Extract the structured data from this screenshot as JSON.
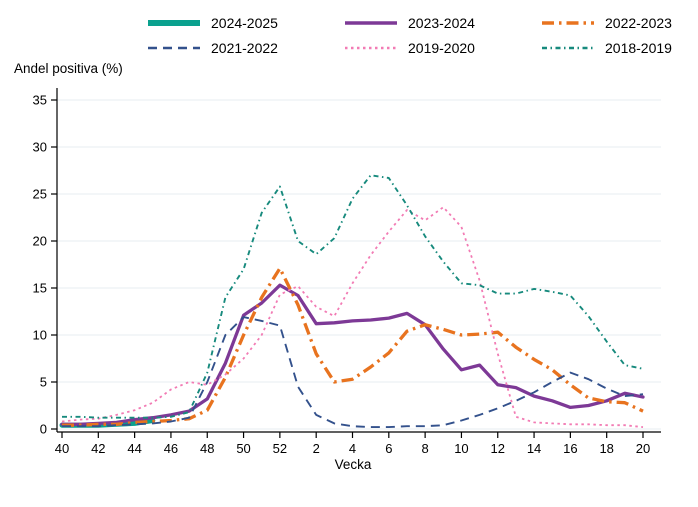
{
  "figure": {
    "y_axis_title": "Andel positiva (%)",
    "x_axis_title": "Vecka"
  },
  "chart_data": {
    "type": "line",
    "title": "",
    "ylabel": "Andel positiva (%)",
    "xlabel": "Vecka",
    "ylim": [
      0,
      35
    ],
    "yticks": [
      0,
      5,
      10,
      15,
      20,
      25,
      30,
      35
    ],
    "grid": true,
    "legend_position": "top",
    "grid_color": "#e7eef1",
    "axis_color": "#000000",
    "categories": [
      "40",
      "41",
      "42",
      "43",
      "44",
      "45",
      "46",
      "47",
      "48",
      "49",
      "50",
      "51",
      "52",
      "1",
      "2",
      "3",
      "4",
      "5",
      "6",
      "7",
      "8",
      "9",
      "10",
      "11",
      "12",
      "13",
      "14",
      "15",
      "16",
      "17",
      "18",
      "19",
      "20"
    ],
    "xtick_labels": [
      "40",
      "42",
      "44",
      "46",
      "48",
      "50",
      "52",
      "2",
      "4",
      "6",
      "8",
      "10",
      "12",
      "14",
      "16",
      "18",
      "20"
    ],
    "series": [
      {
        "name": "2024-2025",
        "color": "#0aa18e",
        "style": "solid-thick",
        "values": [
          0.4,
          0.4,
          0.4,
          0.5,
          0.6,
          0.9,
          null,
          null,
          null,
          null,
          null,
          null,
          null,
          null,
          null,
          null,
          null,
          null,
          null,
          null,
          null,
          null,
          null,
          null,
          null,
          null,
          null,
          null,
          null,
          null,
          null,
          null,
          null
        ]
      },
      {
        "name": "2023-2024",
        "color": "#7d3996",
        "style": "solid",
        "values": [
          0.5,
          0.5,
          0.6,
          0.7,
          1.0,
          1.2,
          1.5,
          1.9,
          3.2,
          7.0,
          12.1,
          13.4,
          15.3,
          14.2,
          11.2,
          11.3,
          11.5,
          11.6,
          11.8,
          12.3,
          11.1,
          8.5,
          6.3,
          6.8,
          4.7,
          4.4,
          3.5,
          3.0,
          2.3,
          2.5,
          3.0,
          3.8,
          3.4
        ]
      },
      {
        "name": "2022-2023",
        "color": "#e8731f",
        "style": "dash-dot",
        "values": [
          0.4,
          0.4,
          0.5,
          0.5,
          0.7,
          0.8,
          0.9,
          1.1,
          2.0,
          5.5,
          10.0,
          14.0,
          17.1,
          13.2,
          8.0,
          5.0,
          5.3,
          6.6,
          8.1,
          10.4,
          11.1,
          10.6,
          10.0,
          10.1,
          10.3,
          8.7,
          7.4,
          6.3,
          4.7,
          3.3,
          2.9,
          2.8,
          1.9
        ]
      },
      {
        "name": "2021-2022",
        "color": "#33518c",
        "style": "dash",
        "values": [
          0.3,
          0.3,
          0.3,
          0.4,
          0.5,
          0.6,
          0.8,
          1.2,
          5.0,
          10.0,
          11.9,
          11.5,
          11.0,
          4.5,
          1.5,
          0.6,
          0.3,
          0.2,
          0.2,
          0.3,
          0.3,
          0.4,
          0.9,
          1.5,
          2.2,
          3.0,
          3.9,
          5.0,
          6.0,
          5.3,
          4.3,
          3.5,
          3.7
        ]
      },
      {
        "name": "2019-2020",
        "color": "#f27bb4",
        "style": "dot",
        "values": [
          0.8,
          1.0,
          1.1,
          1.5,
          2.0,
          2.8,
          4.2,
          5.0,
          4.7,
          5.8,
          7.5,
          10.0,
          14.3,
          15.2,
          13.0,
          12.0,
          15.5,
          18.5,
          21.0,
          23.3,
          22.2,
          23.6,
          21.5,
          15.8,
          8.0,
          1.3,
          0.7,
          0.6,
          0.5,
          0.5,
          0.4,
          0.4,
          0.2
        ]
      },
      {
        "name": "2018-2019",
        "color": "#178a7d",
        "style": "shortdash-dot",
        "values": [
          1.3,
          1.3,
          1.2,
          1.2,
          1.2,
          1.2,
          1.3,
          1.8,
          6.0,
          14.0,
          17.0,
          23.0,
          25.8,
          20.0,
          18.6,
          20.3,
          24.5,
          27.0,
          26.7,
          23.8,
          20.5,
          17.8,
          15.5,
          15.3,
          14.4,
          14.4,
          14.9,
          14.6,
          14.2,
          12.0,
          9.3,
          6.8,
          6.4
        ]
      }
    ]
  }
}
